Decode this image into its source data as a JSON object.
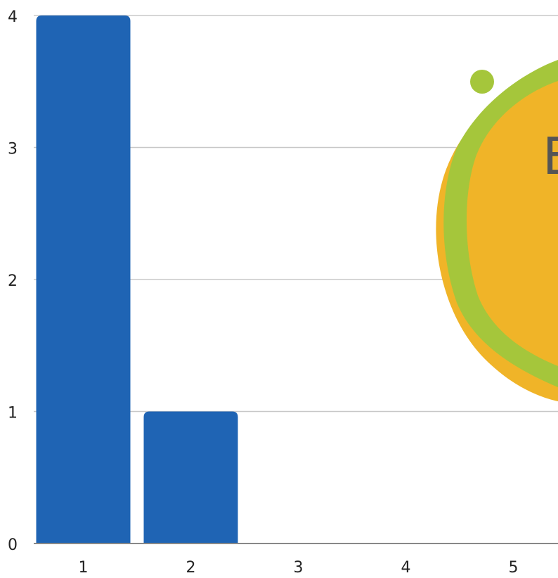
{
  "chart_data": {
    "type": "bar",
    "categories": [
      "1",
      "2",
      "3",
      "4",
      "5"
    ],
    "values": [
      4,
      1,
      0,
      0,
      0
    ],
    "ylim": [
      0,
      4
    ],
    "yticks": [
      "0",
      "1",
      "2",
      "3",
      "4"
    ],
    "grid": true,
    "bar_color": "#1f64b4"
  },
  "overlay": {
    "name": "decorative-logo",
    "colors": {
      "outer": "#f0b428",
      "ring": "#a5c63b",
      "inner": "#f0b428",
      "dot": "#a5c63b",
      "glyph": "#555555"
    },
    "glyph": "B"
  }
}
